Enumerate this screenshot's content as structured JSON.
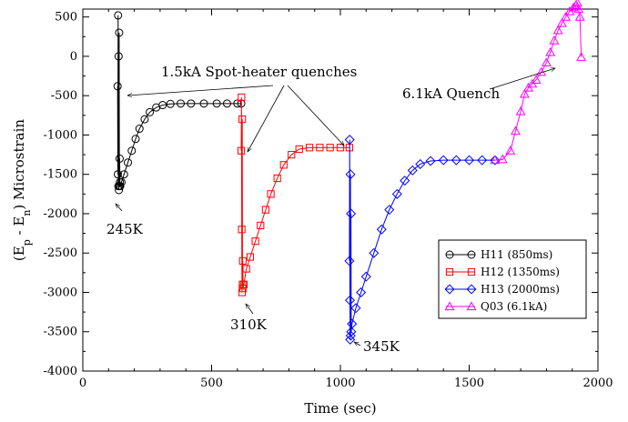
{
  "chart_data": {
    "type": "scatter",
    "xlabel": "Time (sec)",
    "ylabel": "(E_p - E_n) Microstrain",
    "xlim": [
      0,
      2000
    ],
    "ylim": [
      -4000,
      600
    ],
    "xticks": [
      0,
      500,
      1000,
      1500,
      2000
    ],
    "yticks": [
      -4000,
      -3500,
      -3000,
      -2500,
      -2000,
      -1500,
      -1000,
      -500,
      0,
      500
    ],
    "grid": false,
    "legend_position": "bottom-right",
    "series": [
      {
        "name": "H11 (850ms)",
        "color": "#000000",
        "marker": "circle",
        "points": [
          [
            135,
            -380
          ],
          [
            136,
            -1500
          ],
          [
            137,
            520
          ],
          [
            138,
            -1650
          ],
          [
            139,
            0
          ],
          [
            140,
            -1700
          ],
          [
            141,
            300
          ],
          [
            142,
            -1650
          ],
          [
            143,
            -1300
          ],
          [
            144,
            -1600
          ],
          [
            145,
            -1650
          ],
          [
            150,
            -1600
          ],
          [
            160,
            -1500
          ],
          [
            175,
            -1350
          ],
          [
            190,
            -1200
          ],
          [
            205,
            -1050
          ],
          [
            220,
            -920
          ],
          [
            240,
            -800
          ],
          [
            260,
            -710
          ],
          [
            285,
            -650
          ],
          [
            310,
            -620
          ],
          [
            340,
            -605
          ],
          [
            380,
            -600
          ],
          [
            420,
            -600
          ],
          [
            470,
            -600
          ],
          [
            520,
            -600
          ],
          [
            560,
            -600
          ],
          [
            600,
            -600
          ],
          [
            615,
            -600
          ]
        ]
      },
      {
        "name": "H12 (1350ms)",
        "color": "#ff0000",
        "marker": "square",
        "points": [
          [
            615,
            -1200
          ],
          [
            616,
            -520
          ],
          [
            617,
            -2200
          ],
          [
            618,
            -3000
          ],
          [
            619,
            -800
          ],
          [
            620,
            -2900
          ],
          [
            621,
            -2600
          ],
          [
            622,
            -2950
          ],
          [
            625,
            -2900
          ],
          [
            635,
            -2700
          ],
          [
            650,
            -2550
          ],
          [
            670,
            -2350
          ],
          [
            690,
            -2150
          ],
          [
            710,
            -1950
          ],
          [
            730,
            -1750
          ],
          [
            755,
            -1550
          ],
          [
            780,
            -1380
          ],
          [
            810,
            -1250
          ],
          [
            840,
            -1180
          ],
          [
            880,
            -1160
          ],
          [
            920,
            -1160
          ],
          [
            960,
            -1160
          ],
          [
            1000,
            -1160
          ],
          [
            1035,
            -1160
          ]
        ]
      },
      {
        "name": "H13 (2000ms)",
        "color": "#0000ff",
        "marker": "diamond",
        "points": [
          [
            1035,
            -2600
          ],
          [
            1036,
            -1060
          ],
          [
            1037,
            -3100
          ],
          [
            1038,
            -3600
          ],
          [
            1039,
            -1500
          ],
          [
            1040,
            -3550
          ],
          [
            1041,
            -2000
          ],
          [
            1042,
            -3500
          ],
          [
            1045,
            -3400
          ],
          [
            1060,
            -3200
          ],
          [
            1080,
            -3000
          ],
          [
            1100,
            -2800
          ],
          [
            1130,
            -2500
          ],
          [
            1160,
            -2200
          ],
          [
            1190,
            -1950
          ],
          [
            1220,
            -1750
          ],
          [
            1250,
            -1580
          ],
          [
            1280,
            -1450
          ],
          [
            1310,
            -1370
          ],
          [
            1350,
            -1330
          ],
          [
            1400,
            -1320
          ],
          [
            1450,
            -1320
          ],
          [
            1500,
            -1320
          ],
          [
            1550,
            -1320
          ],
          [
            1600,
            -1320
          ]
        ]
      },
      {
        "name": "Q03 (6.1kA)",
        "color": "#ff00ff",
        "marker": "triangle",
        "points": [
          [
            1600,
            -1320
          ],
          [
            1630,
            -1310
          ],
          [
            1660,
            -1200
          ],
          [
            1680,
            -950
          ],
          [
            1700,
            -700
          ],
          [
            1715,
            -480
          ],
          [
            1730,
            -400
          ],
          [
            1745,
            -350
          ],
          [
            1760,
            -300
          ],
          [
            1780,
            -200
          ],
          [
            1800,
            -80
          ],
          [
            1815,
            50
          ],
          [
            1830,
            200
          ],
          [
            1845,
            330
          ],
          [
            1860,
            420
          ],
          [
            1875,
            500
          ],
          [
            1890,
            570
          ],
          [
            1905,
            620
          ],
          [
            1915,
            650
          ],
          [
            1920,
            680
          ],
          [
            1925,
            600
          ],
          [
            1930,
            500
          ],
          [
            1935,
            -10
          ]
        ]
      }
    ],
    "annotations": [
      {
        "text": "1.5kA Spot-heater quenches"
      },
      {
        "text": "6.1kA Quench"
      },
      {
        "text": "245K"
      },
      {
        "text": "310K"
      },
      {
        "text": "345K"
      }
    ]
  }
}
